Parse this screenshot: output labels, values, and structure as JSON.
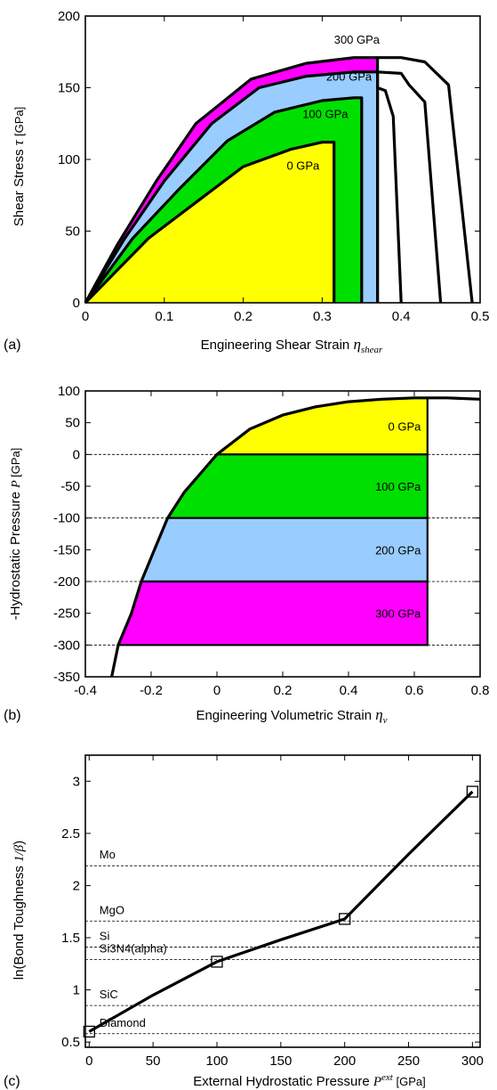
{
  "chart_data": [
    {
      "panel": "(a)",
      "type": "area",
      "xlabel": "Engineering Shear Strain",
      "xlabel_symbol": "η",
      "xlabel_sub": "shear",
      "ylabel": "Shear Stress",
      "ylabel_symbol": "τ",
      "ylabel_unit": "[GPa]",
      "xlim": [
        0,
        0.5
      ],
      "ylim": [
        0,
        200
      ],
      "xticks": [
        "0",
        "0.1",
        "0.2",
        "0.3",
        "0.4",
        "0.5"
      ],
      "yticks": [
        "0",
        "50",
        "100",
        "150",
        "200"
      ],
      "series": [
        {
          "name": "0 GPa",
          "color": "#ffff00",
          "points": [
            [
              0,
              0
            ],
            [
              0.08,
              45
            ],
            [
              0.14,
              70
            ],
            [
              0.2,
              95
            ],
            [
              0.26,
              107
            ],
            [
              0.3,
              112
            ],
            [
              0.315,
              112
            ],
            [
              0.315,
              0
            ]
          ]
        },
        {
          "name": "100 GPa",
          "color": "#00e000",
          "points": [
            [
              0,
              0
            ],
            [
              0.06,
              45
            ],
            [
              0.12,
              80
            ],
            [
              0.18,
              113
            ],
            [
              0.24,
              133
            ],
            [
              0.3,
              141
            ],
            [
              0.34,
              143
            ],
            [
              0.35,
              143
            ],
            [
              0.35,
              0
            ]
          ]
        },
        {
          "name": "200 GPa",
          "color": "#99ccff",
          "points": [
            [
              0,
              0
            ],
            [
              0.05,
              45
            ],
            [
              0.1,
              85
            ],
            [
              0.16,
              125
            ],
            [
              0.22,
              150
            ],
            [
              0.28,
              158
            ],
            [
              0.34,
              161
            ],
            [
              0.37,
              161
            ],
            [
              0.37,
              0
            ]
          ]
        },
        {
          "name": "300 GPa",
          "color": "#ff00ff",
          "points": [
            [
              0,
              0
            ],
            [
              0.04,
              40
            ],
            [
              0.09,
              85
            ],
            [
              0.14,
              125
            ],
            [
              0.21,
              156
            ],
            [
              0.28,
              167
            ],
            [
              0.34,
              171
            ],
            [
              0.37,
              171
            ],
            [
              0.37,
              0
            ]
          ]
        }
      ],
      "unloading_curves": [
        {
          "points": [
            [
              0.37,
              171
            ],
            [
              0.4,
              171
            ],
            [
              0.43,
              168
            ],
            [
              0.46,
              152
            ],
            [
              0.49,
              0
            ]
          ]
        },
        {
          "points": [
            [
              0.37,
              161
            ],
            [
              0.4,
              160
            ],
            [
              0.41,
              152
            ],
            [
              0.43,
              140
            ],
            [
              0.45,
              0
            ]
          ]
        },
        {
          "points": [
            [
              0.37,
              150
            ],
            [
              0.38,
              148
            ],
            [
              0.39,
              130
            ],
            [
              0.4,
              0
            ]
          ]
        }
      ],
      "annotations": [
        "300 GPa",
        "200 GPa",
        "100 GPa",
        "0 GPa"
      ]
    },
    {
      "panel": "(b)",
      "type": "area",
      "xlabel": "Engineering Volumetric Strain",
      "xlabel_symbol": "η",
      "xlabel_sub": "v",
      "ylabel": "-Hydrostatic Pressure",
      "ylabel_symbol": "P",
      "ylabel_unit": "[GPa]",
      "xlim": [
        -0.4,
        0.8
      ],
      "ylim": [
        -350,
        100
      ],
      "xticks": [
        "-0.4",
        "-0.2",
        "0",
        "0.2",
        "0.4",
        "0.6",
        "0.8"
      ],
      "yticks": [
        "100",
        "50",
        "0",
        "-50",
        "-100",
        "-150",
        "-200",
        "-250",
        "-300",
        "-350"
      ],
      "curve": [
        [
          -0.32,
          -350
        ],
        [
          -0.3,
          -300
        ],
        [
          -0.26,
          -250
        ],
        [
          -0.23,
          -200
        ],
        [
          -0.19,
          -150
        ],
        [
          -0.15,
          -100
        ],
        [
          -0.1,
          -60
        ],
        [
          -0.05,
          -30
        ],
        [
          0,
          0
        ],
        [
          0.1,
          40
        ],
        [
          0.2,
          62
        ],
        [
          0.3,
          75
        ],
        [
          0.4,
          83
        ],
        [
          0.5,
          87
        ],
        [
          0.6,
          89
        ],
        [
          0.64,
          89
        ],
        [
          0.7,
          89
        ],
        [
          0.8,
          87
        ]
      ],
      "bands": [
        {
          "name": "0 GPa",
          "color": "#ffff00",
          "y_top": 89,
          "y_bottom": 0
        },
        {
          "name": "100 GPa",
          "color": "#00e000",
          "y_top": 0,
          "y_bottom": -100
        },
        {
          "name": "200 GPa",
          "color": "#99ccff",
          "y_top": -100,
          "y_bottom": -200
        },
        {
          "name": "300 GPa",
          "color": "#ff00ff",
          "y_top": -200,
          "y_bottom": -300
        }
      ],
      "band_right_x": 0.64,
      "dashed_levels": [
        0,
        -100,
        -200,
        -300
      ]
    },
    {
      "panel": "(c)",
      "type": "line",
      "xlabel": "External Hydrostatic Pressure",
      "xlabel_symbol": "P",
      "xlabel_sup": "ext",
      "xlabel_unit": "[GPa]",
      "ylabel": "ln(Bond Toughness",
      "ylabel_symbol": "1/β",
      "ylabel_close": ")",
      "xlim": [
        0,
        300
      ],
      "ylim": [
        0.5,
        3.2
      ],
      "xticks": [
        "0",
        "50",
        "100",
        "150",
        "200",
        "250",
        "300"
      ],
      "yticks": [
        "0.5",
        "1",
        "1.5",
        "2",
        "2.5",
        "3"
      ],
      "x": [
        0,
        100,
        200,
        300
      ],
      "y": [
        0.6,
        1.27,
        1.68,
        2.9
      ],
      "curve": [
        [
          0,
          0.6
        ],
        [
          50,
          0.95
        ],
        [
          100,
          1.27
        ],
        [
          150,
          1.48
        ],
        [
          200,
          1.68
        ],
        [
          250,
          2.3
        ],
        [
          300,
          2.9
        ]
      ],
      "reference_lines": [
        {
          "name": "Mo",
          "y": 2.19,
          "color": "#0000cc"
        },
        {
          "name": "MgO",
          "y": 1.66,
          "color": "#33cc33"
        },
        {
          "name": "Si",
          "y": 1.41,
          "color": "#cc0000"
        },
        {
          "name": "Si3N4(alpha)",
          "y": 1.29,
          "color": "#cc0000"
        },
        {
          "name": "SiC",
          "y": 0.85,
          "color": "#cc0000"
        },
        {
          "name": "Diamond",
          "y": 0.58,
          "color": "#cc0000"
        }
      ]
    }
  ]
}
